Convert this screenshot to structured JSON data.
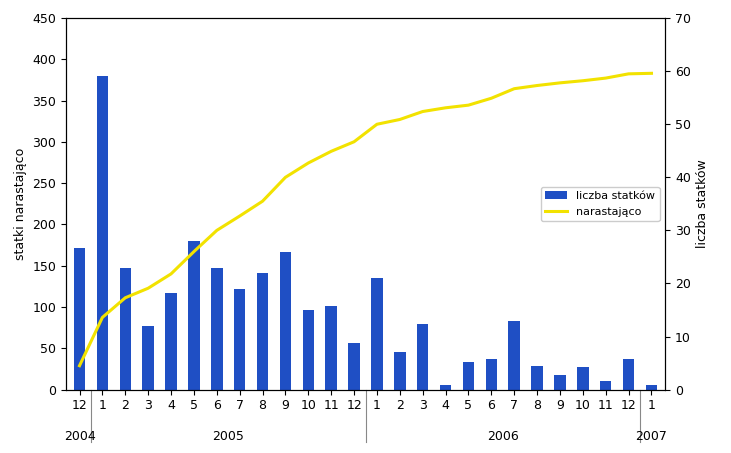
{
  "chart_data": {
    "type": "bar",
    "categories": [
      "12",
      "1",
      "2",
      "3",
      "4",
      "5",
      "6",
      "7",
      "8",
      "9",
      "10",
      "11",
      "12",
      "1",
      "2",
      "3",
      "4",
      "5",
      "6",
      "7",
      "8",
      "9",
      "10",
      "11",
      "12",
      "1"
    ],
    "years": [
      "2004",
      "2005",
      "2006",
      "2007"
    ],
    "y_label": "statki narastająco",
    "y2_label": "liczba statków",
    "series": [
      {
        "name": "liczba statków",
        "type": "bar",
        "color": "#1f4fc4",
        "values": [
          172,
          380,
          147,
          77,
          117,
          180,
          147,
          122,
          141,
          167,
          97,
          101,
          57,
          135,
          45,
          80,
          5,
          33,
          37,
          83,
          28,
          18,
          27,
          10,
          37,
          5
        ]
      },
      {
        "name": "narastająco",
        "type": "line",
        "axis": "y2",
        "color": "#f2e200",
        "values": [
          4.5,
          13.6,
          17.3,
          19.1,
          21.8,
          26,
          30,
          32.7,
          35.5,
          40,
          42.7,
          44.9,
          46.7,
          50,
          50.9,
          52.4,
          53.1,
          53.6,
          54.9,
          56.7,
          57.3,
          57.8,
          58.2,
          58.7,
          59.5,
          59.6
        ]
      }
    ],
    "ylim": [
      0,
      450
    ],
    "yticks": [
      0,
      50,
      100,
      150,
      200,
      250,
      300,
      350,
      400,
      450
    ],
    "y2lim": [
      0,
      70
    ],
    "y2ticks": [
      0,
      10,
      20,
      30,
      40,
      50,
      60,
      70
    ],
    "legend": "center right"
  }
}
